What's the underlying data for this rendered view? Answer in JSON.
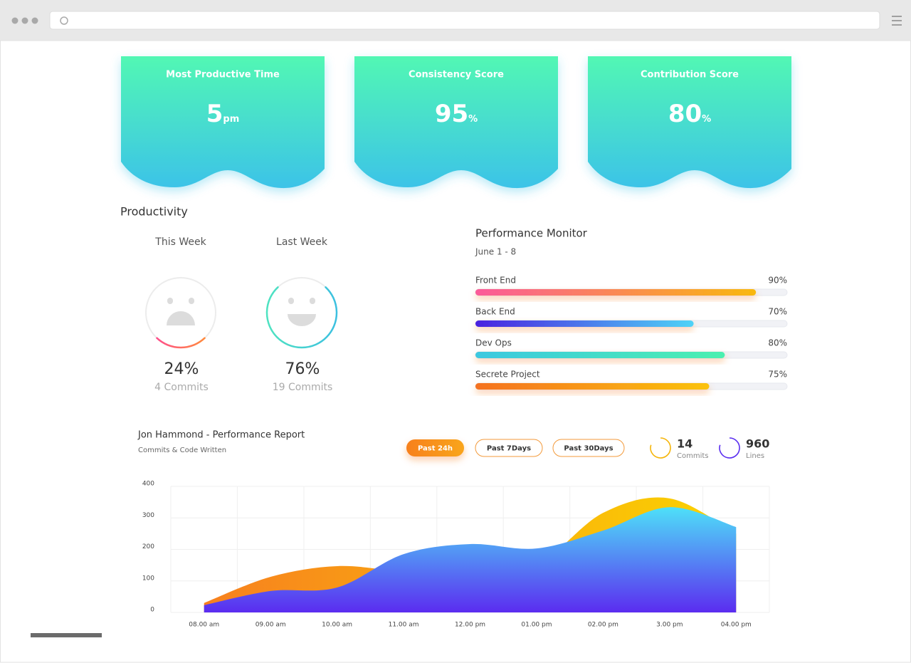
{
  "cards": [
    {
      "title": "Most Productive Time",
      "value": 5,
      "unit": "pm"
    },
    {
      "title": "Consistency Score",
      "value": 95,
      "unit": "%"
    },
    {
      "title": "Contribution Score",
      "value": 80,
      "unit": "%"
    }
  ],
  "productivity": {
    "title": "Productivity",
    "weeks": [
      {
        "label": "This Week",
        "value": 24,
        "value_label": "24%",
        "commits": "4 Commits",
        "mood": "sad",
        "gradient": [
          "#ff4f8b",
          "#ff8a3d"
        ]
      },
      {
        "label": "Last Week",
        "value": 76,
        "value_label": "76%",
        "commits": "19 Commits",
        "mood": "happy",
        "gradient": [
          "#4fe3c1",
          "#3cc0e0"
        ]
      }
    ]
  },
  "performance": {
    "title": "Performance Monitor",
    "date": "June 1 - 8",
    "bars": [
      {
        "name": "Front End",
        "value": 90,
        "value_label": "90%",
        "gradient": [
          "#fb5a9a",
          "#f9b80e"
        ]
      },
      {
        "name": "Back End",
        "value": 70,
        "value_label": "70%",
        "gradient": [
          "#4a22e0",
          "#4fd3f7"
        ]
      },
      {
        "name": "Dev Ops",
        "value": 80,
        "value_label": "80%",
        "gradient": [
          "#3cc8e0",
          "#4cf0b0"
        ]
      },
      {
        "name": "Secrete Project",
        "value": 75,
        "value_label": "75%",
        "gradient": [
          "#f57120",
          "#fbc20b"
        ]
      }
    ]
  },
  "report": {
    "title": "Jon Hammond - Performance Report",
    "subtitle": "Commits & Code Written",
    "buttons": [
      "Past 24h",
      "Past 7Days",
      "Past 30Days"
    ],
    "stats": [
      {
        "value": 14,
        "label": "Commits",
        "color": "#f5b50a"
      },
      {
        "value": 960,
        "label": "Lines",
        "color": "#5a2ef0"
      }
    ]
  },
  "chart_data": {
    "type": "area",
    "categories": [
      "08.00 am",
      "09.00 am",
      "10.00 am",
      "11.00 am",
      "12.00 pm",
      "01.00 pm",
      "02.00 pm",
      "3.00 pm",
      "04.00 pm"
    ],
    "series": [
      {
        "gradient": [
          "#f7801f",
          "#fbd400"
        ],
        "gradient_direction": "horizontal",
        "values": [
          30,
          113,
          147,
          130,
          120,
          150,
          316,
          362,
          250
        ]
      },
      {
        "gradient": [
          "#4ee0f8",
          "#5b2cf0"
        ],
        "gradient_direction": "vertical",
        "values": [
          23,
          68,
          79,
          185,
          217,
          203,
          260,
          334,
          271
        ]
      }
    ],
    "ylim": [
      0,
      400
    ],
    "yticks": [
      0,
      100,
      200,
      300,
      400
    ],
    "grid": true
  }
}
